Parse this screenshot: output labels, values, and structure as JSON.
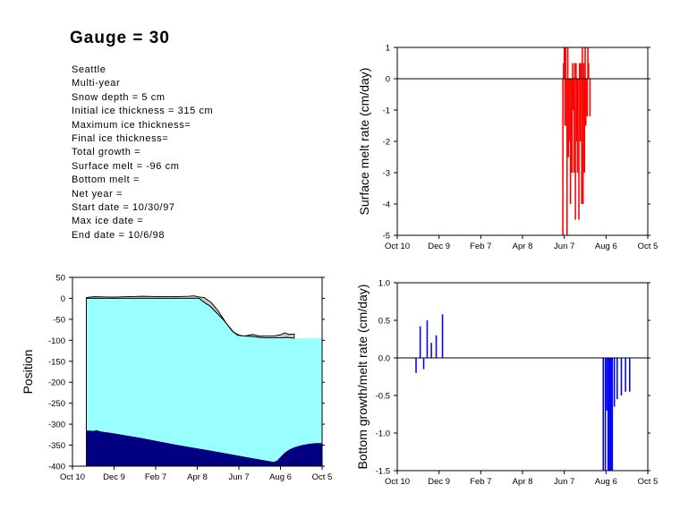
{
  "header": {
    "title": "Gauge = 30",
    "info": [
      "Seattle",
      "Multi-year",
      "Snow depth = 5 cm",
      "Initial ice thickness = 315 cm",
      "Maximum ice thickness=",
      "Final ice thickness=",
      "Total growth =",
      "Surface melt = -96 cm",
      "Bottom melt =",
      "Net year =",
      "Start date = 10/30/97",
      "Max ice date =",
      "End date = 10/6/98"
    ]
  },
  "colors": {
    "ice": "#99ffff",
    "ocean": "#000080",
    "snow": "#c8c8c8",
    "surface_bars": "#ff0000",
    "bottom_bars": "#0000ff"
  },
  "chart_data": [
    {
      "id": "surface",
      "type": "bar",
      "xlabel": "",
      "ylabel": "Surface melt rate (cm/day)",
      "xticks": [
        "Oct 10",
        "Dec 9",
        "Feb 7",
        "Apr 8",
        "Jun 7",
        "Aug 6",
        "Oct 5"
      ],
      "xlim": [
        0,
        360
      ],
      "ylim": [
        -5,
        1
      ],
      "yticks": [
        1,
        0,
        -1,
        -2,
        -3,
        -4,
        -5
      ],
      "zero_line": true,
      "bars": [
        {
          "x": 238,
          "value": -5
        },
        {
          "x": 239,
          "value": 0.5
        },
        {
          "x": 240,
          "value": 1
        },
        {
          "x": 241,
          "value": -1.5
        },
        {
          "x": 242,
          "value": 1
        },
        {
          "x": 243,
          "value": -1.5
        },
        {
          "x": 244,
          "value": -5
        },
        {
          "x": 245,
          "value": 1
        },
        {
          "x": 246,
          "value": -2.5
        },
        {
          "x": 247,
          "value": -2
        },
        {
          "x": 249,
          "value": -4
        },
        {
          "x": 250,
          "value": 0
        },
        {
          "x": 251,
          "value": -3
        },
        {
          "x": 252,
          "value": 0.5
        },
        {
          "x": 253,
          "value": -1
        },
        {
          "x": 254,
          "value": -3
        },
        {
          "x": 255,
          "value": 0.5
        },
        {
          "x": 256,
          "value": -4.5
        },
        {
          "x": 257,
          "value": 0.5
        },
        {
          "x": 258,
          "value": -2
        },
        {
          "x": 259,
          "value": -3
        },
        {
          "x": 260,
          "value": 0
        },
        {
          "x": 261,
          "value": -4.5
        },
        {
          "x": 262,
          "value": 0.5
        },
        {
          "x": 263,
          "value": -2
        },
        {
          "x": 264,
          "value": 0.5
        },
        {
          "x": 265,
          "value": -4
        },
        {
          "x": 266,
          "value": 1
        },
        {
          "x": 267,
          "value": -4
        },
        {
          "x": 268,
          "value": 0.5
        },
        {
          "x": 269,
          "value": -3
        },
        {
          "x": 270,
          "value": 1
        },
        {
          "x": 271,
          "value": -1.5
        },
        {
          "x": 273,
          "value": -1.2
        },
        {
          "x": 274,
          "value": 1
        },
        {
          "x": 275,
          "value": 0.5
        },
        {
          "x": 277,
          "value": -1.2
        }
      ]
    },
    {
      "id": "position",
      "type": "area",
      "xlabel": "",
      "ylabel": "Position",
      "xticks": [
        "Oct 10",
        "Dec 9",
        "Feb 7",
        "Apr 8",
        "Jun 7",
        "Aug 6",
        "Oct 5"
      ],
      "xlim": [
        0,
        360
      ],
      "ylim": [
        -400,
        50
      ],
      "yticks": [
        50,
        0,
        -50,
        -100,
        -150,
        -200,
        -250,
        -300,
        -350,
        -400
      ],
      "x_start": 20,
      "x_end": 360,
      "snow_surface": [
        [
          20,
          2
        ],
        [
          30,
          4
        ],
        [
          60,
          3
        ],
        [
          100,
          5
        ],
        [
          140,
          4
        ],
        [
          168,
          5
        ],
        [
          175,
          6
        ],
        [
          183,
          3
        ],
        [
          190,
          2
        ],
        [
          200,
          -10
        ],
        [
          210,
          -30
        ],
        [
          220,
          -55
        ],
        [
          230,
          -78
        ],
        [
          238,
          -88
        ],
        [
          248,
          -90
        ],
        [
          260,
          -86
        ],
        [
          270,
          -90
        ],
        [
          290,
          -90
        ],
        [
          300,
          -87
        ],
        [
          306,
          -82
        ],
        [
          312,
          -86
        ],
        [
          320,
          -85
        ]
      ],
      "ice_surface": [
        [
          20,
          0
        ],
        [
          100,
          0
        ],
        [
          160,
          0
        ],
        [
          183,
          0
        ],
        [
          186,
          -5
        ],
        [
          192,
          -12
        ],
        [
          198,
          -18
        ],
        [
          204,
          -28
        ],
        [
          210,
          -38
        ],
        [
          216,
          -48
        ],
        [
          222,
          -60
        ],
        [
          228,
          -72
        ],
        [
          232,
          -80
        ],
        [
          238,
          -86
        ],
        [
          244,
          -89
        ],
        [
          250,
          -90
        ],
        [
          260,
          -91
        ],
        [
          270,
          -93
        ],
        [
          280,
          -94
        ],
        [
          290,
          -94
        ],
        [
          300,
          -94
        ],
        [
          310,
          -93
        ],
        [
          320,
          -95
        ]
      ],
      "ice_bottom": [
        [
          20,
          -315
        ],
        [
          30,
          -316
        ],
        [
          35,
          -314
        ],
        [
          40,
          -317
        ],
        [
          60,
          -322
        ],
        [
          100,
          -333
        ],
        [
          150,
          -349
        ],
        [
          200,
          -363
        ],
        [
          250,
          -378
        ],
        [
          290,
          -390
        ],
        [
          295,
          -387
        ],
        [
          300,
          -378
        ],
        [
          306,
          -368
        ],
        [
          312,
          -361
        ],
        [
          320,
          -355
        ],
        [
          330,
          -350
        ],
        [
          340,
          -347
        ],
        [
          350,
          -345
        ],
        [
          360,
          -345
        ]
      ]
    },
    {
      "id": "bottom",
      "type": "bar",
      "xlabel": "",
      "ylabel": "Bottom growth/melt rate (cm/day)",
      "xticks": [
        "Oct 10",
        "Dec 9",
        "Feb 7",
        "Apr 8",
        "Jun 7",
        "Aug 6",
        "Oct 5"
      ],
      "xlim": [
        0,
        360
      ],
      "ylim": [
        -1.5,
        1.0
      ],
      "yticks": [
        "1.0",
        "0.5",
        "0.0",
        "-0.5",
        "-1.0",
        "-1.5"
      ],
      "zero_line": true,
      "bars": [
        {
          "x": 27,
          "value": -0.2
        },
        {
          "x": 33,
          "value": 0.42
        },
        {
          "x": 38,
          "value": -0.15
        },
        {
          "x": 43,
          "value": 0.5
        },
        {
          "x": 49,
          "value": 0.2
        },
        {
          "x": 56,
          "value": 0.3
        },
        {
          "x": 65,
          "value": 0.58
        },
        {
          "x": 296,
          "value": -1.5
        },
        {
          "x": 299,
          "value": -1.5
        },
        {
          "x": 301,
          "value": -0.7
        },
        {
          "x": 303,
          "value": -1.5
        },
        {
          "x": 305,
          "value": -1.5
        },
        {
          "x": 307,
          "value": -1.5
        },
        {
          "x": 309,
          "value": -1.5
        },
        {
          "x": 312,
          "value": -0.65
        },
        {
          "x": 316,
          "value": -0.55
        },
        {
          "x": 322,
          "value": -0.5
        },
        {
          "x": 328,
          "value": -0.45
        },
        {
          "x": 334,
          "value": -0.45
        }
      ]
    }
  ]
}
